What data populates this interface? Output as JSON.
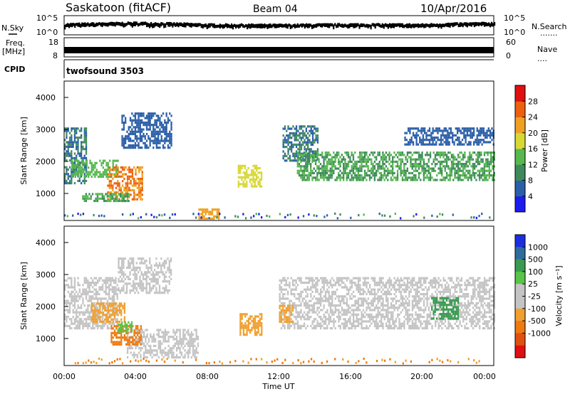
{
  "header": {
    "station": "Saskatoon (fitACF)",
    "beam": "Beam 04",
    "date": "10/Apr/2016"
  },
  "panels": {
    "nsky": {
      "left_label": "N.Sky",
      "left_ticks": [
        "10^5",
        "10^0"
      ],
      "right_ticks": [
        "10^5",
        "10^0"
      ],
      "right_label": "N.Search",
      "right_dots": "......."
    },
    "freq": {
      "left_label_top": "Freq.",
      "left_label_bottom": "[MHz]",
      "left_ticks": [
        "18",
        "8"
      ],
      "right_ticks": [
        "60",
        "0"
      ],
      "right_label": "Nave",
      "right_dots": "...."
    },
    "cpid": {
      "label": "CPID",
      "value": "twofsound 3503"
    },
    "power": {
      "ylabel": "Slant Range [km]",
      "yticks": [
        "4000",
        "3000",
        "2000",
        "1000"
      ],
      "colorbar_label": "Power [dB]",
      "colorbar_ticks": [
        "28",
        "24",
        "20",
        "16",
        "12",
        "8",
        "4"
      ]
    },
    "velocity": {
      "ylabel": "Slant Range [km]",
      "yticks": [
        "4000",
        "3000",
        "2000",
        "1000"
      ],
      "colorbar_label": "Velocity [m s⁻¹]",
      "colorbar_ticks": [
        "1000",
        "500",
        "100",
        "25",
        "-25",
        "-100",
        "-500",
        "-1000"
      ]
    }
  },
  "xaxis": {
    "label": "Time UT",
    "ticks": [
      "00:00",
      "04:00",
      "08:00",
      "12:00",
      "16:00",
      "20:00",
      "00:00"
    ]
  },
  "colors": {
    "power_scale": [
      "#1c1cf0",
      "#2b5fa8",
      "#3f8a5c",
      "#57b84f",
      "#d8d835",
      "#f0a020",
      "#ee6010",
      "#e01010"
    ],
    "velocity_scale": [
      "#1c2fe0",
      "#2f6b9c",
      "#3a9a50",
      "#59c44a",
      "#c4c4c4",
      "#c4c4c4",
      "#f0a030",
      "#ee7a10",
      "#e05010",
      "#e01010"
    ],
    "ground_scatter": "#c4c4c4"
  },
  "chart_data": [
    {
      "type": "line",
      "panel": "N.Sky / N.Search noise",
      "y_scale": "log",
      "ylim": [
        1,
        100000
      ],
      "x": [
        "00:00",
        "04:00",
        "08:00",
        "12:00",
        "16:00",
        "20:00",
        "00:00"
      ],
      "series": [
        {
          "name": "N.Sky",
          "values": [
            300,
            800,
            250,
            200,
            300,
            250,
            700
          ]
        }
      ]
    },
    {
      "type": "line",
      "panel": "Freq. / Nave",
      "ylim": [
        8,
        18
      ],
      "x": [
        "00:00",
        "04:00",
        "08:00",
        "12:00",
        "16:00",
        "20:00",
        "00:00"
      ],
      "series": [
        {
          "name": "Freq.",
          "values": [
            11,
            11,
            11,
            11,
            11,
            11,
            11
          ]
        }
      ]
    },
    {
      "type": "heatmap",
      "panel": "Power",
      "xlim": [
        "00:00",
        "00:00"
      ],
      "ylim": [
        180,
        4500
      ],
      "yticks": [
        1000,
        2000,
        3000,
        4000
      ],
      "value_range": [
        0,
        32
      ],
      "bands": [
        {
          "t0": 0.0,
          "t1": 1.2,
          "r0": 1300,
          "r1": 3000,
          "value": 8
        },
        {
          "t0": 0.4,
          "t1": 3.0,
          "r0": 1500,
          "r1": 2000,
          "value": 14
        },
        {
          "t0": 2.4,
          "t1": 4.4,
          "r0": 800,
          "r1": 1800,
          "value": 24
        },
        {
          "t0": 1.0,
          "t1": 3.6,
          "r0": 750,
          "r1": 1000,
          "value": 12
        },
        {
          "t0": 3.2,
          "t1": 6.0,
          "r0": 2400,
          "r1": 3500,
          "value": 6
        },
        {
          "t0": 7.5,
          "t1": 8.6,
          "r0": 200,
          "r1": 500,
          "value": 22
        },
        {
          "t0": 9.7,
          "t1": 11.0,
          "r0": 1200,
          "r1": 1900,
          "value": 18
        },
        {
          "t0": 12.2,
          "t1": 14.2,
          "r0": 2000,
          "r1": 3100,
          "value": 8
        },
        {
          "t0": 13.0,
          "t1": 24.0,
          "r0": 1400,
          "r1": 2300,
          "value": 12
        },
        {
          "t0": 19.0,
          "t1": 24.0,
          "r0": 2500,
          "r1": 3000,
          "value": 6
        }
      ]
    },
    {
      "type": "heatmap",
      "panel": "Velocity",
      "xlim": [
        "00:00",
        "00:00"
      ],
      "ylim": [
        180,
        4500
      ],
      "yticks": [
        1000,
        2000,
        3000,
        4000
      ],
      "value_range": [
        -1000,
        1000
      ],
      "ground_scatter_bands": [
        {
          "t0": 0.0,
          "t1": 3.0,
          "r0": 1300,
          "r1": 2900
        },
        {
          "t0": 3.0,
          "t1": 6.0,
          "r0": 2400,
          "r1": 3500
        },
        {
          "t0": 3.5,
          "t1": 7.5,
          "r0": 400,
          "r1": 1300
        },
        {
          "t0": 12.0,
          "t1": 24.0,
          "r0": 1300,
          "r1": 2900
        }
      ],
      "bands": [
        {
          "t0": 1.5,
          "t1": 3.4,
          "r0": 1500,
          "r1": 2100,
          "value": -100
        },
        {
          "t0": 2.6,
          "t1": 4.3,
          "r0": 800,
          "r1": 1400,
          "value": -500
        },
        {
          "t0": 3.0,
          "t1": 3.8,
          "r0": 1200,
          "r1": 1500,
          "value": 100
        },
        {
          "t0": 9.8,
          "t1": 11.0,
          "r0": 1100,
          "r1": 1800,
          "value": -100
        },
        {
          "t0": 12.0,
          "t1": 12.8,
          "r0": 1500,
          "r1": 2000,
          "value": -100
        },
        {
          "t0": 20.5,
          "t1": 22.0,
          "r0": 1600,
          "r1": 2300,
          "value": 500
        }
      ]
    }
  ]
}
